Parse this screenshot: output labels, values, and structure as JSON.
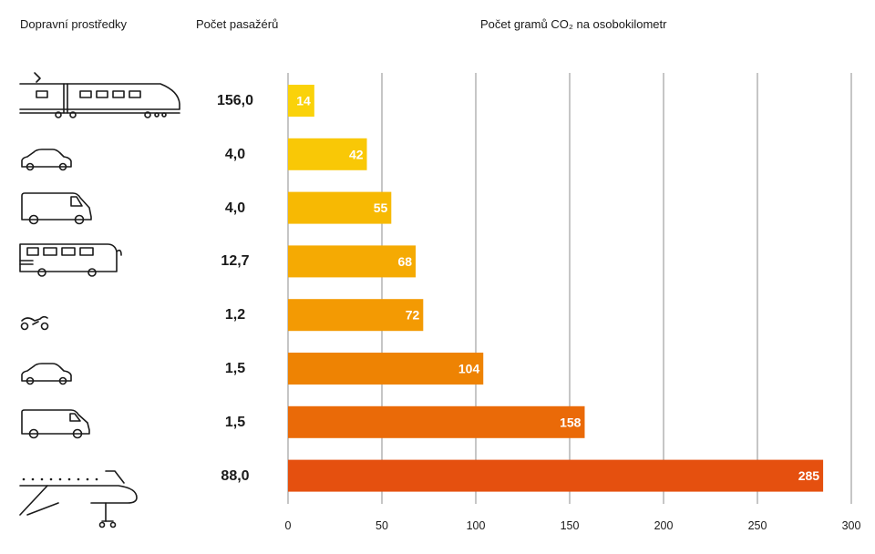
{
  "headers": {
    "mode": "Dopravní prostředky",
    "passengers": "Počet pasažérů",
    "co2": "Počet gramů CO₂ na osobokilometr"
  },
  "rows": [
    {
      "icon": "train-icon",
      "passengers": "156,0"
    },
    {
      "icon": "small-car-icon",
      "passengers": "4,0"
    },
    {
      "icon": "van-icon",
      "passengers": "4,0"
    },
    {
      "icon": "bus-icon",
      "passengers": "12,7"
    },
    {
      "icon": "motorcycle-icon",
      "passengers": "1,2"
    },
    {
      "icon": "small-car-icon",
      "passengers": "1,5"
    },
    {
      "icon": "van-icon",
      "passengers": "1,5"
    },
    {
      "icon": "airplane-icon",
      "passengers": "88,0"
    }
  ],
  "chart_data": {
    "type": "bar",
    "orientation": "horizontal",
    "values": [
      14,
      42,
      55,
      68,
      72,
      104,
      158,
      285
    ],
    "xlim": [
      0,
      300
    ],
    "xticks": [
      0,
      50,
      100,
      150,
      200,
      250,
      300
    ],
    "grid": true,
    "colors": [
      "#fad20a",
      "#f9c806",
      "#f7b903",
      "#f5aa03",
      "#f39a03",
      "#ee8303",
      "#ea6a08",
      "#e5500f"
    ]
  }
}
